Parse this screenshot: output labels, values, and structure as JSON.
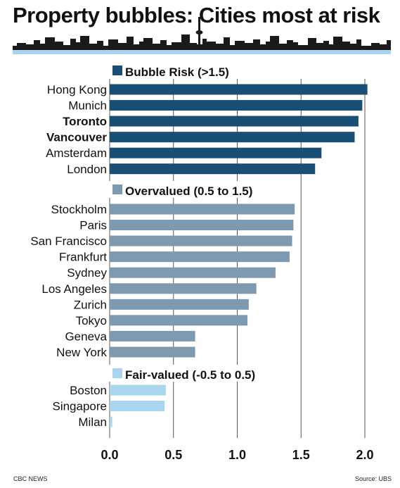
{
  "title": "Property bubbles: Cities most at risk",
  "credit": "CBC NEWS",
  "source": "Source: UBS",
  "colors": {
    "bubble": "#1a4f75",
    "overvalued": "#7e9ab0",
    "fair": "#a9d6ee",
    "skyline": "#1a1a1a",
    "skyline_water": "#a9d6ee",
    "grid": "#555555"
  },
  "chart_data": {
    "type": "bar",
    "orientation": "horizontal",
    "xlim": [
      0,
      2.0
    ],
    "xticks": [
      "0.0",
      "0.5",
      "1.0",
      "1.5",
      "2.0"
    ],
    "grid": true,
    "groups": [
      {
        "name": "Bubble Risk (>1.5)",
        "color_key": "bubble",
        "categories": [
          "Hong Kong",
          "Munich",
          "Toronto",
          "Vancouver",
          "Amsterdam",
          "London"
        ],
        "values": [
          2.02,
          1.98,
          1.95,
          1.92,
          1.66,
          1.61
        ],
        "bold": [
          "Toronto",
          "Vancouver"
        ]
      },
      {
        "name": "Overvalued (0.5 to 1.5)",
        "color_key": "overvalued",
        "categories": [
          "Stockholm",
          "Paris",
          "San Francisco",
          "Frankfurt",
          "Sydney",
          "Los Angeles",
          "Zurich",
          "Tokyo",
          "Geneva",
          "New York"
        ],
        "values": [
          1.45,
          1.44,
          1.43,
          1.41,
          1.3,
          1.15,
          1.09,
          1.08,
          0.67,
          0.67
        ],
        "bold": []
      },
      {
        "name": "Fair-valued (-0.5 to 0.5)",
        "color_key": "fair",
        "categories": [
          "Boston",
          "Singapore",
          "Milan"
        ],
        "values": [
          0.44,
          0.43,
          0.02
        ],
        "bold": []
      }
    ]
  }
}
